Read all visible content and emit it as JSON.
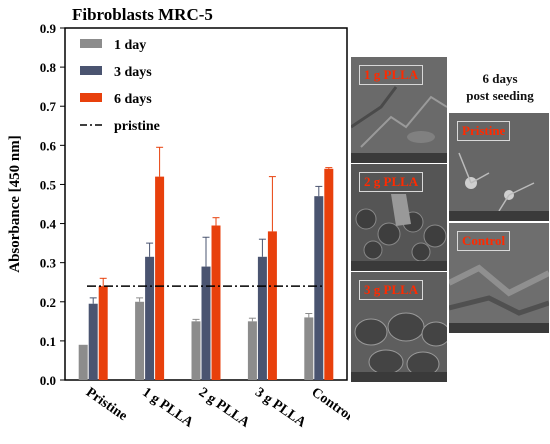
{
  "chart_data": {
    "type": "bar",
    "title": "Fibroblasts MRC-5",
    "ylabel": "Absorbance [450 nm]",
    "xlabel": "",
    "ylim": [
      0,
      0.9
    ],
    "yticks": [
      "0.0",
      "0.1",
      "0.2",
      "0.3",
      "0.4",
      "0.5",
      "0.6",
      "0.7",
      "0.8",
      "0.9"
    ],
    "categories": [
      "Pristine",
      "1 g PLLA",
      "2 g PLLA",
      "3 g PLLA",
      "Control"
    ],
    "series": [
      {
        "name": "1 day",
        "color": "#8c8c8c",
        "values": [
          0.09,
          0.2,
          0.15,
          0.15,
          0.16
        ],
        "errors": [
          0.0,
          0.01,
          0.005,
          0.008,
          0.01
        ]
      },
      {
        "name": "3 days",
        "color": "#4a5470",
        "values": [
          0.195,
          0.315,
          0.29,
          0.315,
          0.47
        ],
        "errors": [
          0.015,
          0.035,
          0.075,
          0.045,
          0.025
        ]
      },
      {
        "name": "6 days",
        "color": "#e8400c",
        "values": [
          0.24,
          0.52,
          0.395,
          0.38,
          0.54
        ],
        "errors": [
          0.02,
          0.075,
          0.02,
          0.14,
          0.003
        ]
      }
    ],
    "reference_line": {
      "name": "pristine",
      "value": 0.24,
      "style": "dash-dot"
    },
    "legend_position": "top-left",
    "grid": false
  },
  "sem_panels": {
    "left": [
      "1 g PLLA",
      "2 g PLLA",
      "3 g PLLA"
    ],
    "right": [
      "Pristine",
      "Control"
    ],
    "caption_line1": "6 days",
    "caption_line2": "post seeding"
  }
}
